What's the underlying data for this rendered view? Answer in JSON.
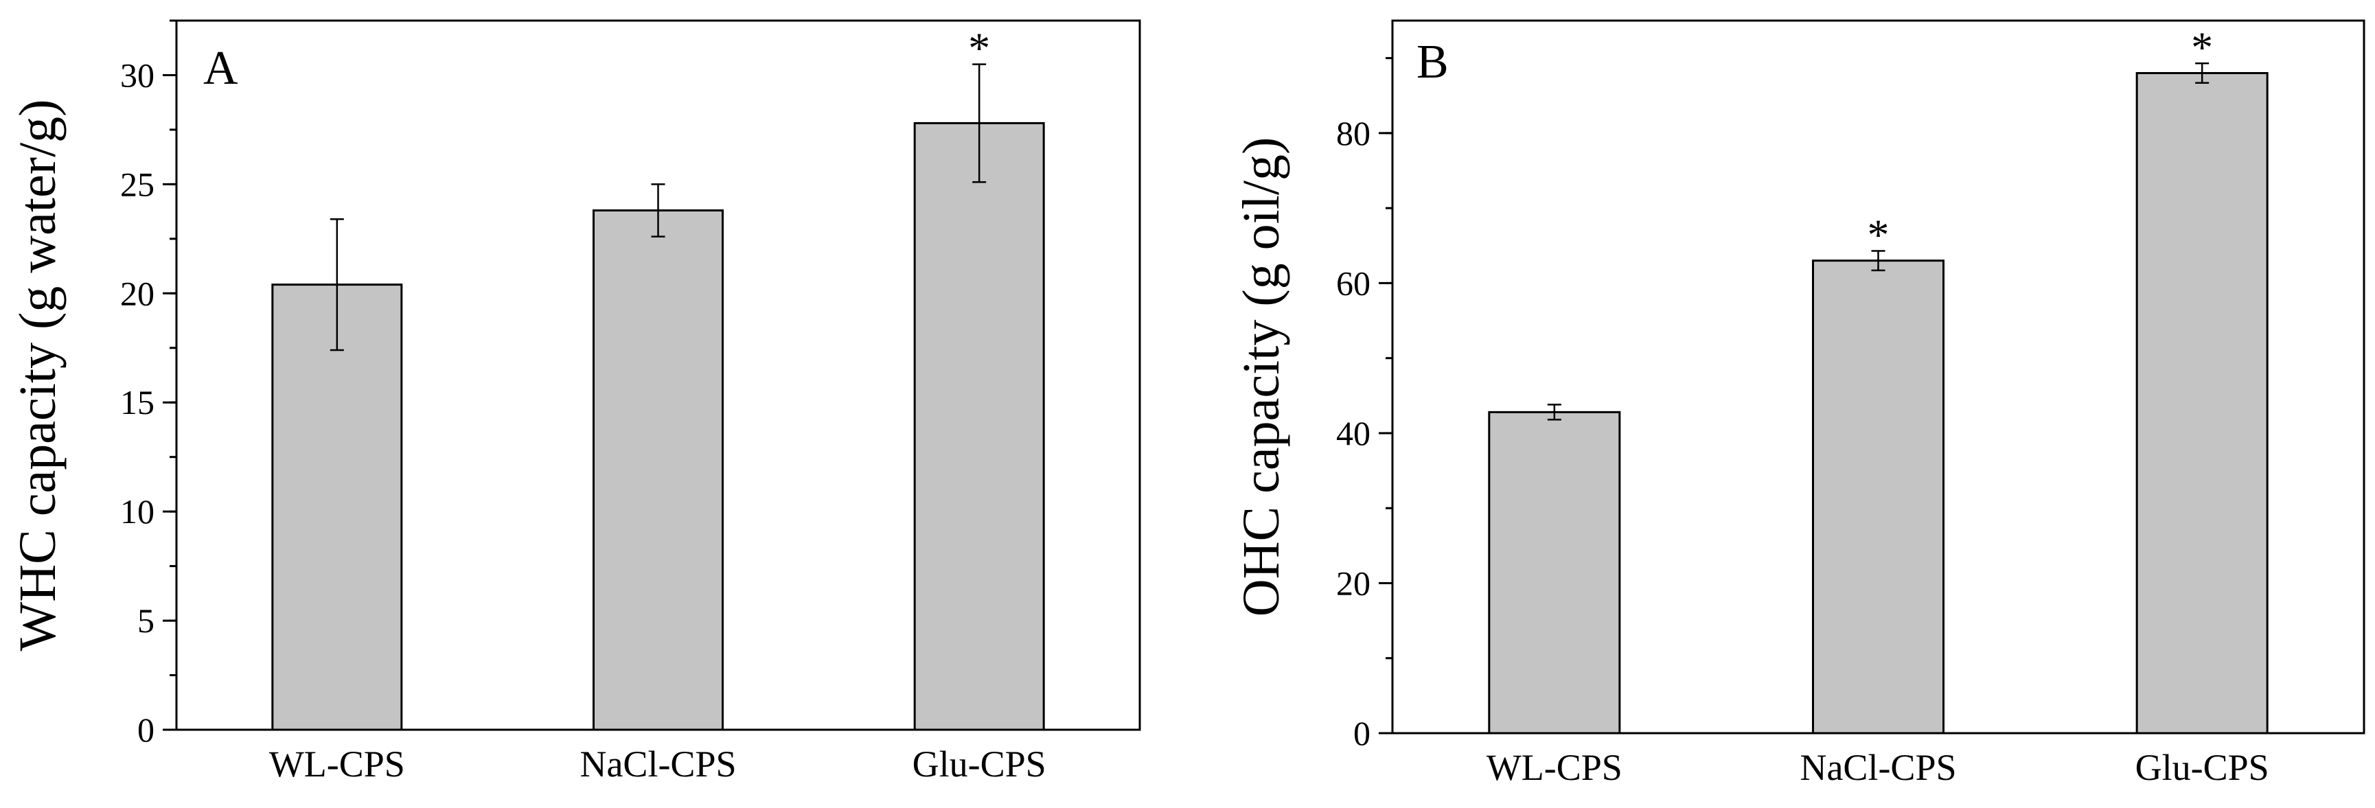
{
  "chart_data": [
    {
      "type": "bar",
      "panel_label": "A",
      "title": "",
      "xlabel": "",
      "ylabel": "WHC capacity (g water/g)",
      "categories": [
        "WL-CPS",
        "NaCl-CPS",
        "Glu-CPS"
      ],
      "values": [
        20.4,
        23.8,
        27.8
      ],
      "errors": [
        3.0,
        1.2,
        2.7
      ],
      "significance": [
        "",
        "",
        "*"
      ],
      "ylim": [
        0,
        32.5
      ],
      "yticks": [
        0,
        5,
        10,
        15,
        20,
        25,
        30
      ],
      "minor_step": 2.5,
      "bar_color": "#c4c4c4",
      "grid": false
    },
    {
      "type": "bar",
      "panel_label": "B",
      "title": "",
      "xlabel": "",
      "ylabel": "OHC capacity (g oil/g)",
      "categories": [
        "WL-CPS",
        "NaCl-CPS",
        "Glu-CPS"
      ],
      "values": [
        42.8,
        63.0,
        88.0
      ],
      "errors": [
        1.0,
        1.3,
        1.3
      ],
      "significance": [
        "",
        "*",
        "*"
      ],
      "ylim": [
        0,
        95
      ],
      "yticks": [
        0,
        20,
        40,
        60,
        80
      ],
      "minor_step": 10,
      "bar_color": "#c4c4c4",
      "grid": false
    }
  ]
}
